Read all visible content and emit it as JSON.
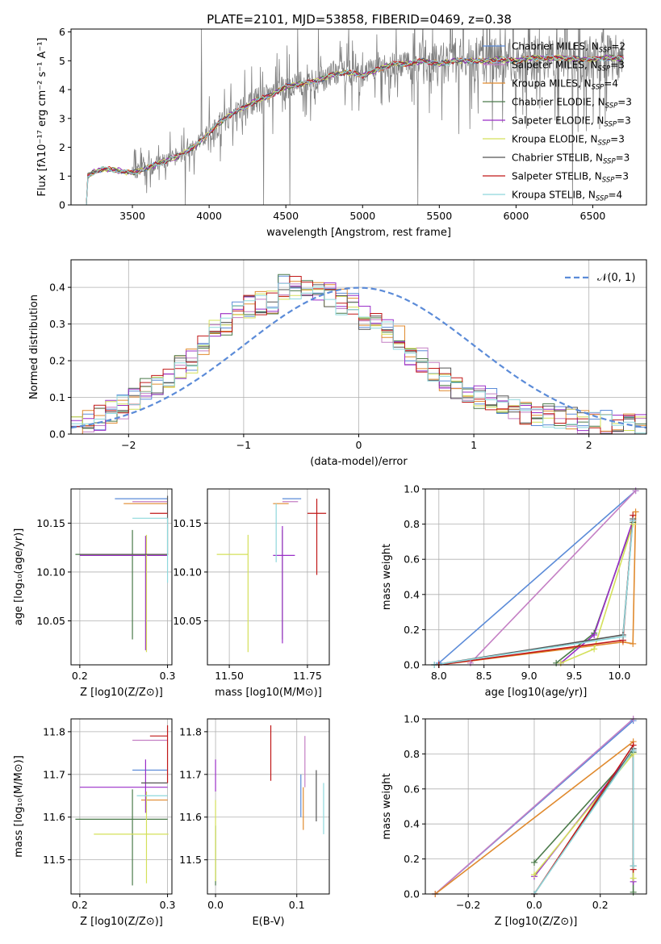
{
  "title": "PLATE=2101, MJD=53858, FIBERID=0469, z=0.38",
  "colors": {
    "Chabrier MILES": "#5b8bd8",
    "Salpeter MILES": "#c47fc4",
    "Kroupa MILES": "#e08a2e",
    "Chabrier ELODIE": "#4a7a4a",
    "Salpeter ELODIE": "#9a2ec8",
    "Kroupa ELODIE": "#d4e05a",
    "Chabrier STELIB": "#555555",
    "Salpeter STELIB": "#c01818",
    "Kroupa STELIB": "#8ed8dc",
    "gaussian": "#5b8bd8",
    "data": "#808080"
  },
  "chart_data": [
    {
      "id": "spectrum",
      "type": "line",
      "xlabel": "wavelength [Angstrom, rest frame]",
      "ylabel": "Flux [f_λ 10^-17 erg cm^-2 s^-1 A^-1]",
      "xlim": [
        3100,
        6850
      ],
      "ylim": [
        0,
        6.1
      ],
      "xticks": [
        3500,
        4000,
        4500,
        5000,
        5500,
        6000,
        6500
      ],
      "yticks": [
        0,
        1,
        2,
        3,
        4,
        5,
        6
      ],
      "legend": [
        "Chabrier MILES, N_SSP=2",
        "Salpeter MILES, N_SSP=3",
        "Kroupa MILES, N_SSP=4",
        "Chabrier ELODIE, N_SSP=3",
        "Salpeter ELODIE, N_SSP=3",
        "Kroupa ELODIE, N_SSP=3",
        "Chabrier STELIB, N_SSP=3",
        "Salpeter STELIB, N_SSP=3",
        "Kroupa STELIB, N_SSP=4"
      ],
      "legend_position": "right",
      "continuum": [
        [
          3200,
          0.0
        ],
        [
          3210,
          1.0
        ],
        [
          3250,
          1.15
        ],
        [
          3300,
          1.25
        ],
        [
          3400,
          1.2
        ],
        [
          3450,
          1.15
        ],
        [
          3500,
          1.1
        ],
        [
          3600,
          1.3
        ],
        [
          3700,
          1.5
        ],
        [
          3800,
          1.7
        ],
        [
          3900,
          2.0
        ],
        [
          4000,
          2.5
        ],
        [
          4100,
          3.0
        ],
        [
          4200,
          3.3
        ],
        [
          4300,
          3.6
        ],
        [
          4400,
          3.8
        ],
        [
          4500,
          4.1
        ],
        [
          4600,
          4.2
        ],
        [
          4700,
          4.3
        ],
        [
          4800,
          4.5
        ],
        [
          4900,
          4.6
        ],
        [
          5000,
          4.5
        ],
        [
          5100,
          4.7
        ],
        [
          5200,
          4.9
        ],
        [
          5300,
          4.9
        ],
        [
          5400,
          5.0
        ],
        [
          5500,
          4.9
        ],
        [
          5600,
          5.0
        ],
        [
          5700,
          5.0
        ],
        [
          5800,
          5.0
        ],
        [
          5900,
          5.05
        ],
        [
          6000,
          5.0
        ],
        [
          6100,
          5.1
        ],
        [
          6200,
          5.1
        ],
        [
          6300,
          5.1
        ],
        [
          6400,
          5.05
        ],
        [
          6500,
          5.05
        ],
        [
          6600,
          5.1
        ],
        [
          6700,
          5.1
        ]
      ],
      "grid": false
    },
    {
      "id": "residuals",
      "type": "histogram",
      "xlabel": "(data-model)/error",
      "ylabel": "Normed distribution",
      "xlim": [
        -2.5,
        2.5
      ],
      "ylim": [
        0,
        0.475
      ],
      "xticks": [
        -2,
        -1,
        0,
        1,
        2
      ],
      "yticks": [
        0.0,
        0.1,
        0.2,
        0.3,
        0.4
      ],
      "legend": [
        "𝒩(0, 1)"
      ],
      "legend_position": "top-right",
      "grid": true,
      "bin_width": 0.1,
      "profile": [
        0.02,
        0.03,
        0.035,
        0.04,
        0.045,
        0.05,
        0.06,
        0.065,
        0.075,
        0.08,
        0.09,
        0.1,
        0.12,
        0.13,
        0.14,
        0.15,
        0.16,
        0.17,
        0.18,
        0.19,
        0.2,
        0.22,
        0.24,
        0.26,
        0.28,
        0.3,
        0.3,
        0.31,
        0.33,
        0.34,
        0.35,
        0.36,
        0.36,
        0.37,
        0.36,
        0.38,
        0.4,
        0.41,
        0.4,
        0.39,
        0.39,
        0.41,
        0.4,
        0.39,
        0.38,
        0.37,
        0.36,
        0.36,
        0.35,
        0.33,
        0.32,
        0.3,
        0.28,
        0.27,
        0.26,
        0.25,
        0.24,
        0.22,
        0.2,
        0.2,
        0.18,
        0.16,
        0.15,
        0.14,
        0.13,
        0.12,
        0.11,
        0.1,
        0.1,
        0.09,
        0.08,
        0.075,
        0.07,
        0.065,
        0.06,
        0.055,
        0.05,
        0.045,
        0.04,
        0.035,
        0.03,
        0.03,
        0.03,
        0.025,
        0.02,
        0.02,
        0.02,
        0.015,
        0.015,
        0.01,
        0.01,
        0.01,
        0.01,
        0.01,
        0.01,
        0.01,
        0.01,
        0.01,
        0.01,
        0.01
      ]
    },
    {
      "id": "age-vs-Z",
      "type": "scatter",
      "xlabel": "Z [log10(Z/Z⊙)]",
      "ylabel": "age [log10(age/yr)]",
      "xlim": [
        0.19,
        0.305
      ],
      "ylim": [
        10.005,
        10.185
      ],
      "xticks": [
        0.2,
        0.3
      ],
      "yticks": [
        10.05,
        10.1,
        10.15
      ],
      "grid": true,
      "points": [
        {
          "m": "Chabrier MILES",
          "x": 0.27,
          "xerr": [
            0.03,
            0.03
          ],
          "y": 10.175,
          "yerr": [
            0,
            0
          ]
        },
        {
          "m": "Salpeter MILES",
          "x": 0.28,
          "xerr": [
            0.02,
            0.02
          ],
          "y": 10.172,
          "yerr": [
            0,
            0
          ]
        },
        {
          "m": "Kroupa MILES",
          "x": 0.275,
          "xerr": [
            0.025,
            0.025
          ],
          "y": 10.17,
          "yerr": [
            0,
            0
          ]
        },
        {
          "m": "Chabrier ELODIE",
          "x": 0.26,
          "xerr": [
            0.065,
            0.04
          ],
          "y": 10.118,
          "yerr": [
            0.087,
            0.025
          ]
        },
        {
          "m": "Salpeter ELODIE",
          "x": 0.275,
          "xerr": [
            0.075,
            0.025
          ],
          "y": 10.117,
          "yerr": [
            0.097,
            0.02
          ]
        },
        {
          "m": "Kroupa ELODIE",
          "x": 0.276,
          "xerr": [
            0.075,
            0.025
          ],
          "y": 10.118,
          "yerr": [
            0.1,
            0.02
          ]
        },
        {
          "m": "Chabrier STELIB",
          "x": 0.3,
          "xerr": [
            0.1,
            0
          ],
          "y": 10.118,
          "yerr": [
            0,
            0.06
          ]
        },
        {
          "m": "Salpeter STELIB",
          "x": 0.29,
          "xerr": [
            0.01,
            0.01
          ],
          "y": 10.16,
          "yerr": [
            0,
            0
          ]
        },
        {
          "m": "Kroupa STELIB",
          "x": 0.3,
          "xerr": [
            0.04,
            0
          ],
          "y": 10.155,
          "yerr": [
            0.066,
            0
          ]
        }
      ]
    },
    {
      "id": "age-vs-mass",
      "type": "scatter",
      "xlabel": "mass [log10(M/M⊙)]",
      "ylabel": "",
      "xlim": [
        11.43,
        11.82
      ],
      "ylim": [
        10.005,
        10.185
      ],
      "xticks": [
        11.5,
        11.75
      ],
      "yticks": [
        10.05,
        10.1,
        10.15
      ],
      "grid": true,
      "points": [
        {
          "m": "Chabrier MILES",
          "x": 11.7,
          "xerr": [
            0.03,
            0.03
          ],
          "y": 10.175,
          "yerr": [
            0,
            0
          ]
        },
        {
          "m": "Salpeter MILES",
          "x": 11.69,
          "xerr": [
            0.02,
            0.03
          ],
          "y": 10.172,
          "yerr": [
            0,
            0
          ]
        },
        {
          "m": "Kroupa MILES",
          "x": 11.66,
          "xerr": [
            0.02,
            0.03
          ],
          "y": 10.17,
          "yerr": [
            0,
            0
          ]
        },
        {
          "m": "Chabrier ELODIE",
          "x": 11.67,
          "xerr": [
            0,
            0
          ],
          "y": 10.118,
          "yerr": [
            0.087,
            0.025
          ]
        },
        {
          "m": "Salpeter ELODIE",
          "x": 11.67,
          "xerr": [
            0.03,
            0.04
          ],
          "y": 10.117,
          "yerr": [
            0.09,
            0.03
          ]
        },
        {
          "m": "Kroupa ELODIE",
          "x": 11.56,
          "xerr": [
            0.1,
            0
          ],
          "y": 10.118,
          "yerr": [
            0.1,
            0.02
          ]
        },
        {
          "m": "Chabrier STELIB",
          "x": 11.75,
          "xerr": [
            0,
            0
          ],
          "y": 10.118,
          "yerr": [
            0,
            0
          ]
        },
        {
          "m": "Salpeter STELIB",
          "x": 11.78,
          "xerr": [
            0.03,
            0.03
          ],
          "y": 10.16,
          "yerr": [
            0.063,
            0.015
          ]
        },
        {
          "m": "Kroupa STELIB",
          "x": 11.65,
          "xerr": [
            0,
            0
          ],
          "y": 10.155,
          "yerr": [
            0.045,
            0.015
          ]
        }
      ]
    },
    {
      "id": "weight-vs-age",
      "type": "line",
      "xlabel": "age [log10(age/yr)]",
      "ylabel": "mass weight",
      "xlim": [
        7.85,
        10.3
      ],
      "ylim": [
        0,
        1.0
      ],
      "xticks": [
        8.0,
        8.5,
        9.0,
        9.5,
        10.0
      ],
      "yticks": [
        0.0,
        0.2,
        0.4,
        0.6,
        0.8,
        1.0
      ],
      "grid": true,
      "series": [
        {
          "m": "Chabrier MILES",
          "x": [
            8.0,
            10.18
          ],
          "y": [
            0.01,
            0.99
          ]
        },
        {
          "m": "Salpeter MILES",
          "x": [
            8.35,
            10.18
          ],
          "y": [
            0.01,
            0.99
          ]
        },
        {
          "m": "Kroupa MILES",
          "x": [
            8.0,
            10.04,
            10.15,
            10.18
          ],
          "y": [
            0.0,
            0.13,
            0.12,
            0.87
          ]
        },
        {
          "m": "Chabrier ELODIE",
          "x": [
            9.3,
            9.72,
            10.15
          ],
          "y": [
            0.01,
            0.18,
            0.81
          ]
        },
        {
          "m": "Salpeter ELODIE",
          "x": [
            9.35,
            9.72,
            10.15
          ],
          "y": [
            0.01,
            0.17,
            0.82
          ]
        },
        {
          "m": "Kroupa ELODIE",
          "x": [
            9.35,
            9.72,
            10.15
          ],
          "y": [
            0.01,
            0.09,
            0.8
          ]
        },
        {
          "m": "Chabrier STELIB",
          "x": [
            7.95,
            10.04,
            10.15
          ],
          "y": [
            0.0,
            0.17,
            0.83
          ]
        },
        {
          "m": "Salpeter STELIB",
          "x": [
            8.0,
            10.04,
            10.15
          ],
          "y": [
            0.0,
            0.14,
            0.85
          ]
        },
        {
          "m": "Kroupa STELIB",
          "x": [
            7.95,
            10.04,
            10.15
          ],
          "y": [
            0.0,
            0.16,
            0.82
          ]
        }
      ]
    },
    {
      "id": "mass-vs-Z",
      "type": "scatter",
      "xlabel": "Z [log10(Z/Z⊙)]",
      "ylabel": "mass [log10(M/M⊙)]",
      "xlim": [
        0.19,
        0.305
      ],
      "ylim": [
        11.42,
        11.83
      ],
      "xticks": [
        0.2,
        0.3
      ],
      "yticks": [
        11.5,
        11.6,
        11.7,
        11.8
      ],
      "grid": true,
      "points": [
        {
          "m": "Chabrier MILES",
          "x": 0.28,
          "xerr": [
            0.02,
            0.02
          ],
          "y": 11.71,
          "yerr": [
            0,
            0
          ]
        },
        {
          "m": "Salpeter MILES",
          "x": 0.28,
          "xerr": [
            0.02,
            0.02
          ],
          "y": 11.78,
          "yerr": [
            0,
            0
          ]
        },
        {
          "m": "Kroupa MILES",
          "x": 0.285,
          "xerr": [
            0.015,
            0.015
          ],
          "y": 11.64,
          "yerr": [
            0,
            0
          ]
        },
        {
          "m": "Chabrier ELODIE",
          "x": 0.26,
          "xerr": [
            0.065,
            0.04
          ],
          "y": 11.595,
          "yerr": [
            0.155,
            0.07
          ]
        },
        {
          "m": "Salpeter ELODIE",
          "x": 0.275,
          "xerr": [
            0.075,
            0.025
          ],
          "y": 11.67,
          "yerr": [
            0.06,
            0.065
          ]
        },
        {
          "m": "Kroupa ELODIE",
          "x": 0.276,
          "xerr": [
            0.06,
            0.025
          ],
          "y": 11.56,
          "yerr": [
            0.115,
            0.1
          ]
        },
        {
          "m": "Chabrier STELIB",
          "x": 0.3,
          "xerr": [
            0.03,
            0
          ],
          "y": 11.68,
          "yerr": [
            0,
            0
          ]
        },
        {
          "m": "Salpeter STELIB",
          "x": 0.3,
          "xerr": [
            0.02,
            0
          ],
          "y": 11.79,
          "yerr": [
            0.11,
            0.025
          ]
        },
        {
          "m": "Kroupa STELIB",
          "x": 0.3,
          "xerr": [
            0.035,
            0
          ],
          "y": 11.65,
          "yerr": [
            0,
            0
          ]
        }
      ]
    },
    {
      "id": "mass-vs-ebv",
      "type": "scatter",
      "xlabel": "E(B-V)",
      "ylabel": "",
      "xlim": [
        -0.01,
        0.14
      ],
      "ylim": [
        11.42,
        11.83
      ],
      "xticks": [
        0.0,
        0.1
      ],
      "yticks": [
        11.5,
        11.6,
        11.7,
        11.8
      ],
      "grid": true,
      "points": [
        {
          "m": "Chabrier MILES",
          "x": 0.105,
          "xerr": [
            0,
            0
          ],
          "y": 11.65,
          "yerr": [
            0.05,
            0.05
          ]
        },
        {
          "m": "Salpeter MILES",
          "x": 0.11,
          "xerr": [
            0,
            0
          ],
          "y": 11.73,
          "yerr": [
            0.06,
            0.06
          ]
        },
        {
          "m": "Kroupa MILES",
          "x": 0.108,
          "xerr": [
            0,
            0
          ],
          "y": 11.62,
          "yerr": [
            0.05,
            0.05
          ]
        },
        {
          "m": "Chabrier ELODIE",
          "x": 0.0,
          "xerr": [
            0,
            0
          ],
          "y": 11.5,
          "yerr": [
            0.06,
            0.08
          ]
        },
        {
          "m": "Salpeter ELODIE",
          "x": 0.0,
          "xerr": [
            0,
            0
          ],
          "y": 11.69,
          "yerr": [
            0.03,
            0.045
          ]
        },
        {
          "m": "Kroupa ELODIE",
          "x": 0.0,
          "xerr": [
            0,
            0
          ],
          "y": 11.55,
          "yerr": [
            0.1,
            0.09
          ]
        },
        {
          "m": "Chabrier STELIB",
          "x": 0.124,
          "xerr": [
            0,
            0
          ],
          "y": 11.65,
          "yerr": [
            0.06,
            0.06
          ]
        },
        {
          "m": "Salpeter STELIB",
          "x": 0.068,
          "xerr": [
            0,
            0
          ],
          "y": 11.75,
          "yerr": [
            0.065,
            0.065
          ]
        },
        {
          "m": "Kroupa STELIB",
          "x": 0.133,
          "xerr": [
            0,
            0
          ],
          "y": 11.62,
          "yerr": [
            0.06,
            0.06
          ]
        }
      ]
    },
    {
      "id": "weight-vs-Z",
      "type": "line",
      "xlabel": "Z [log10(Z/Z⊙)]",
      "ylabel": "mass weight",
      "xlim": [
        -0.33,
        0.34
      ],
      "ylim": [
        0,
        1.0
      ],
      "xticks": [
        -0.2,
        0.0,
        0.2
      ],
      "yticks": [
        0.0,
        0.2,
        0.4,
        0.6,
        0.8,
        1.0
      ],
      "grid": true,
      "series": [
        {
          "m": "Chabrier MILES",
          "x": [
            -0.3,
            0.3
          ],
          "y": [
            0.0,
            0.99
          ]
        },
        {
          "m": "Salpeter MILES",
          "x": [
            -0.3,
            0.3
          ],
          "y": [
            0.0,
            1.0
          ]
        },
        {
          "m": "Kroupa MILES",
          "x": [
            -0.3,
            0.3
          ],
          "y": [
            0.0,
            0.87
          ]
        },
        {
          "m": "Chabrier ELODIE",
          "x": [
            0.0,
            0.3,
            0.3
          ],
          "y": [
            0.18,
            0.81,
            0.01
          ]
        },
        {
          "m": "Salpeter ELODIE",
          "x": [
            0.0,
            0.3,
            0.3
          ],
          "y": [
            0.1,
            0.82,
            0.07
          ]
        },
        {
          "m": "Kroupa ELODIE",
          "x": [
            0.0,
            0.3,
            0.3
          ],
          "y": [
            0.11,
            0.8,
            0.09
          ]
        },
        {
          "m": "Chabrier STELIB",
          "x": [
            0.0,
            0.3,
            0.3
          ],
          "y": [
            0.0,
            0.83,
            0.16
          ]
        },
        {
          "m": "Salpeter STELIB",
          "x": [
            0.0,
            0.3,
            0.3
          ],
          "y": [
            0.0,
            0.85,
            0.14
          ]
        },
        {
          "m": "Kroupa STELIB",
          "x": [
            0.0,
            0.3,
            0.3
          ],
          "y": [
            0.0,
            0.82,
            0.16
          ]
        }
      ]
    }
  ]
}
